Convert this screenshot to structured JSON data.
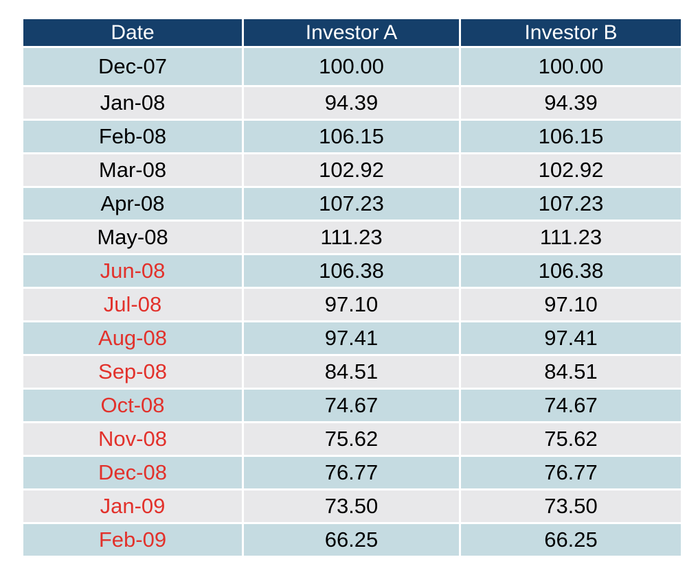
{
  "colors": {
    "header_bg": "#153f6a",
    "header_text": "#ffffff",
    "row_a_bg": "#c5dbe1",
    "row_b_bg": "#e8e8ea",
    "text_default": "#000000",
    "text_highlight": "#e2312b"
  },
  "chart_data": {
    "type": "table",
    "columns": [
      "Date",
      "Investor A",
      "Investor B"
    ],
    "rows": [
      {
        "date": "Dec-07",
        "investor_a": "100.00",
        "investor_b": "100.00",
        "highlight": false
      },
      {
        "date": "Jan-08",
        "investor_a": "94.39",
        "investor_b": "94.39",
        "highlight": false
      },
      {
        "date": "Feb-08",
        "investor_a": "106.15",
        "investor_b": "106.15",
        "highlight": false
      },
      {
        "date": "Mar-08",
        "investor_a": "102.92",
        "investor_b": "102.92",
        "highlight": false
      },
      {
        "date": "Apr-08",
        "investor_a": "107.23",
        "investor_b": "107.23",
        "highlight": false
      },
      {
        "date": "May-08",
        "investor_a": "111.23",
        "investor_b": "111.23",
        "highlight": false
      },
      {
        "date": "Jun-08",
        "investor_a": "106.38",
        "investor_b": "106.38",
        "highlight": true
      },
      {
        "date": "Jul-08",
        "investor_a": "97.10",
        "investor_b": "97.10",
        "highlight": true
      },
      {
        "date": "Aug-08",
        "investor_a": "97.41",
        "investor_b": "97.41",
        "highlight": true
      },
      {
        "date": "Sep-08",
        "investor_a": "84.51",
        "investor_b": "84.51",
        "highlight": true
      },
      {
        "date": "Oct-08",
        "investor_a": "74.67",
        "investor_b": "74.67",
        "highlight": true
      },
      {
        "date": "Nov-08",
        "investor_a": "75.62",
        "investor_b": "75.62",
        "highlight": true
      },
      {
        "date": "Dec-08",
        "investor_a": "76.77",
        "investor_b": "76.77",
        "highlight": true
      },
      {
        "date": "Jan-09",
        "investor_a": "73.50",
        "investor_b": "73.50",
        "highlight": true
      },
      {
        "date": "Feb-09",
        "investor_a": "66.25",
        "investor_b": "66.25",
        "highlight": true
      }
    ]
  }
}
